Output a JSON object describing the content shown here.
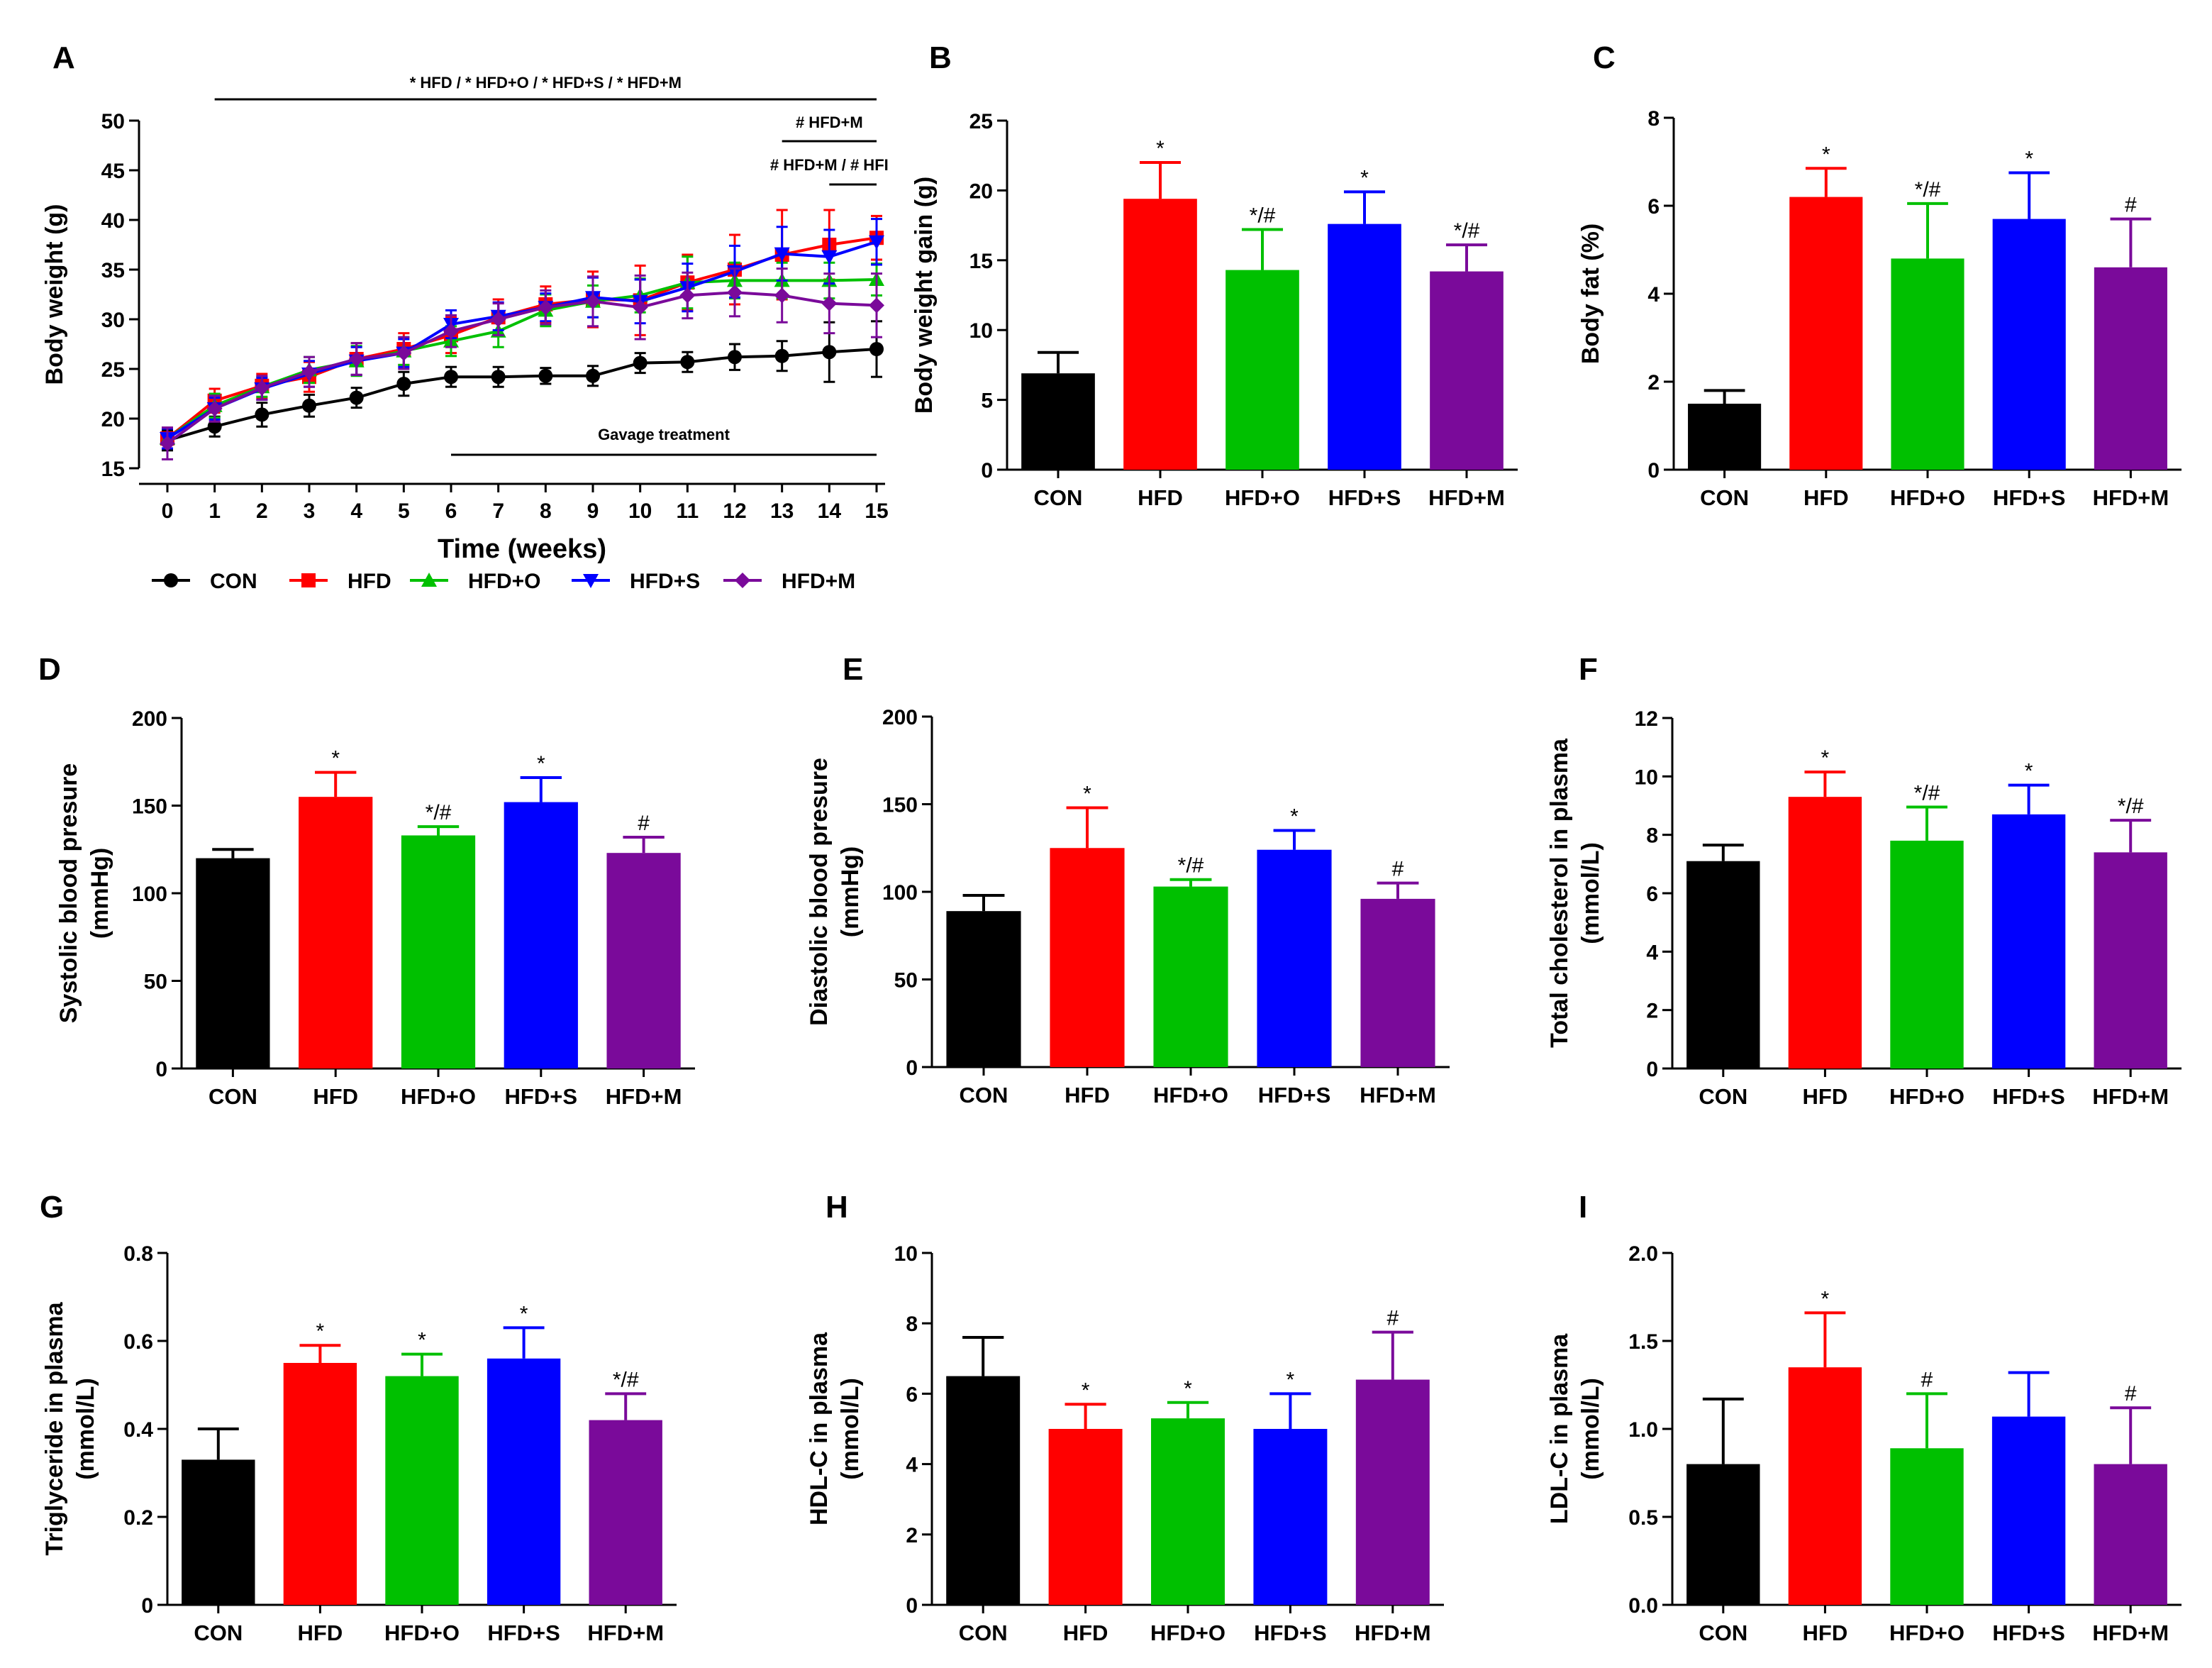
{
  "colors": {
    "CON": "#000000",
    "HFD": "#ff0000",
    "HFD+O": "#00c000",
    "HFD+S": "#0000ff",
    "HFD+M": "#7a0a9a"
  },
  "chart_data": [
    {
      "id": "A",
      "panel_label": "A",
      "type": "line",
      "xlabel": "Time (weeks)",
      "ylabel": "Body weight (g)",
      "x": [
        0,
        1,
        2,
        3,
        4,
        5,
        6,
        7,
        8,
        9,
        10,
        11,
        12,
        13,
        14,
        15
      ],
      "ylim": [
        15,
        50
      ],
      "yticks": [
        15,
        20,
        25,
        30,
        35,
        40,
        45,
        50
      ],
      "series": [
        {
          "name": "CON",
          "values": [
            17.8,
            19.2,
            20.4,
            21.3,
            22.1,
            23.5,
            24.2,
            24.2,
            24.3,
            24.3,
            25.6,
            25.7,
            26.2,
            26.3,
            26.7,
            27.0
          ],
          "errors": [
            1.0,
            1.0,
            1.2,
            1.1,
            1.0,
            1.2,
            1.0,
            1.0,
            0.8,
            1.0,
            1.0,
            1.0,
            1.3,
            1.5,
            3.0,
            2.8
          ]
        },
        {
          "name": "HFD",
          "values": [
            18.0,
            21.8,
            23.3,
            24.2,
            26.0,
            27.0,
            28.4,
            30.2,
            31.5,
            32.0,
            31.9,
            33.7,
            35.0,
            36.5,
            37.5,
            38.2
          ],
          "errors": [
            1.0,
            1.2,
            1.2,
            1.5,
            1.6,
            1.6,
            1.8,
            1.8,
            1.8,
            2.8,
            3.5,
            2.8,
            3.5,
            4.5,
            3.5,
            2.2
          ]
        },
        {
          "name": "HFD+O",
          "values": [
            18.0,
            21.3,
            23.2,
            24.9,
            25.8,
            26.8,
            27.8,
            28.8,
            30.9,
            31.8,
            32.4,
            33.7,
            33.9,
            33.9,
            33.9,
            34.0
          ],
          "errors": [
            1.0,
            1.2,
            1.0,
            1.3,
            1.5,
            1.4,
            1.5,
            1.6,
            1.6,
            1.6,
            1.7,
            2.6,
            1.8,
            1.8,
            1.8,
            1.6
          ]
        },
        {
          "name": "HFD+S",
          "values": [
            18.0,
            21.0,
            23.0,
            24.5,
            25.8,
            26.6,
            29.5,
            30.3,
            31.2,
            32.2,
            31.8,
            33.2,
            34.8,
            36.6,
            36.3,
            37.8
          ],
          "errors": [
            1.0,
            1.1,
            1.1,
            1.3,
            1.4,
            1.4,
            1.4,
            1.4,
            1.4,
            2.0,
            2.2,
            2.4,
            2.6,
            2.7,
            2.7,
            2.3
          ]
        },
        {
          "name": "HFD+M",
          "values": [
            17.5,
            21.0,
            23.1,
            24.7,
            26.0,
            26.6,
            28.8,
            30.0,
            31.2,
            31.8,
            31.2,
            32.4,
            32.7,
            32.4,
            31.6,
            31.4
          ],
          "errors": [
            1.6,
            1.3,
            1.2,
            1.5,
            1.6,
            1.6,
            1.6,
            1.6,
            1.7,
            2.5,
            3.2,
            2.3,
            2.4,
            2.7,
            3.0,
            3.2
          ]
        }
      ],
      "annotations": {
        "top": "* HFD / * HFD+O / * HFD+S / * HFD+M",
        "hash1": "# HFD+M",
        "hash2": "# HFD+M / # HFI",
        "gavage": "Gavage treatment"
      }
    },
    {
      "id": "B",
      "panel_label": "B",
      "type": "bar",
      "categories": [
        "CON",
        "HFD",
        "HFD+O",
        "HFD+S",
        "HFD+M"
      ],
      "values": [
        6.9,
        19.4,
        14.3,
        17.6,
        14.2
      ],
      "errors": [
        1.5,
        2.6,
        2.9,
        2.3,
        1.9
      ],
      "marks": [
        "",
        "*",
        "*/#",
        "*",
        "*/#"
      ],
      "ylabel": "Body weight gain (g)",
      "ylim": [
        0,
        25
      ],
      "yticks": [
        0,
        5,
        10,
        15,
        20,
        25
      ]
    },
    {
      "id": "C",
      "panel_label": "C",
      "type": "bar",
      "categories": [
        "CON",
        "HFD",
        "HFD+O",
        "HFD+S",
        "HFD+M"
      ],
      "values": [
        1.5,
        6.2,
        4.8,
        5.7,
        4.6
      ],
      "errors": [
        0.3,
        0.65,
        1.25,
        1.05,
        1.1
      ],
      "marks": [
        "",
        "*",
        "*/#",
        "*",
        "#"
      ],
      "ylabel": "Body fat (%)",
      "ylim": [
        0,
        8
      ],
      "yticks": [
        0,
        2,
        4,
        6,
        8
      ]
    },
    {
      "id": "D",
      "panel_label": "D",
      "type": "bar",
      "categories": [
        "CON",
        "HFD",
        "HFD+O",
        "HFD+S",
        "HFD+M"
      ],
      "values": [
        120,
        155,
        133,
        152,
        123
      ],
      "errors": [
        5,
        14,
        5,
        14,
        9
      ],
      "marks": [
        "",
        "*",
        "*/#",
        "*",
        "#"
      ],
      "ylabel": [
        "Systolic blood presure",
        "(mmHg)"
      ],
      "ylim": [
        0,
        200
      ],
      "yticks": [
        0,
        50,
        100,
        150,
        200
      ]
    },
    {
      "id": "E",
      "panel_label": "E",
      "type": "bar",
      "categories": [
        "CON",
        "HFD",
        "HFD+O",
        "HFD+S",
        "HFD+M"
      ],
      "values": [
        89,
        125,
        103,
        124,
        96
      ],
      "errors": [
        9,
        23,
        4,
        11,
        9
      ],
      "marks": [
        "",
        "*",
        "*/#",
        "*",
        "#"
      ],
      "ylabel": [
        "Diastolic blood presure",
        "(mmHg)"
      ],
      "ylim": [
        0,
        200
      ],
      "yticks": [
        0,
        50,
        100,
        150,
        200
      ]
    },
    {
      "id": "F",
      "panel_label": "F",
      "type": "bar",
      "categories": [
        "CON",
        "HFD",
        "HFD+O",
        "HFD+S",
        "HFD+M"
      ],
      "values": [
        7.1,
        9.3,
        7.8,
        8.7,
        7.4
      ],
      "errors": [
        0.55,
        0.85,
        1.15,
        1.0,
        1.1
      ],
      "marks": [
        "",
        "*",
        "*/#",
        "*",
        "*/#"
      ],
      "ylabel": [
        "Total cholesterol in plasma",
        "(mmol/L)"
      ],
      "ylim": [
        0,
        12
      ],
      "yticks": [
        0,
        2,
        4,
        6,
        8,
        10,
        12
      ]
    },
    {
      "id": "G",
      "panel_label": "G",
      "type": "bar",
      "categories": [
        "CON",
        "HFD",
        "HFD+O",
        "HFD+S",
        "HFD+M"
      ],
      "values": [
        0.33,
        0.55,
        0.52,
        0.56,
        0.42
      ],
      "errors": [
        0.07,
        0.04,
        0.05,
        0.07,
        0.06
      ],
      "marks": [
        "",
        "*",
        "*",
        "*",
        "*/#"
      ],
      "ylabel": [
        "Triglyceride in plasma",
        "(mmol/L)"
      ],
      "ylim": [
        0,
        0.8
      ],
      "yticks": [
        0,
        0.2,
        0.4,
        0.6,
        0.8
      ]
    },
    {
      "id": "H",
      "panel_label": "H",
      "type": "bar",
      "categories": [
        "CON",
        "HFD",
        "HFD+O",
        "HFD+S",
        "HFD+M"
      ],
      "values": [
        6.5,
        5.0,
        5.3,
        5.0,
        6.4
      ],
      "errors": [
        1.1,
        0.7,
        0.45,
        1.0,
        1.35
      ],
      "marks": [
        "",
        "*",
        "*",
        "*",
        "#"
      ],
      "ylabel": [
        "HDL-C in plasma",
        "(mmol/L)"
      ],
      "ylim": [
        0,
        10
      ],
      "yticks": [
        0,
        2,
        4,
        6,
        8,
        10
      ]
    },
    {
      "id": "I",
      "panel_label": "I",
      "type": "bar",
      "categories": [
        "CON",
        "HFD",
        "HFD+O",
        "HFD+S",
        "HFD+M"
      ],
      "values": [
        0.8,
        1.35,
        0.89,
        1.07,
        0.8
      ],
      "errors": [
        0.37,
        0.31,
        0.31,
        0.25,
        0.32
      ],
      "marks": [
        "",
        "*",
        "#",
        "",
        "#"
      ],
      "ylabel": [
        "LDL-C in plasma",
        "(mmol/L)"
      ],
      "ylim": [
        0,
        2.0
      ],
      "yticks": [
        0,
        0.5,
        1.0,
        1.5,
        2.0
      ],
      "ytick_labels": [
        "0.0",
        "0.5",
        "1.0",
        "1.5",
        "2.0"
      ]
    }
  ]
}
